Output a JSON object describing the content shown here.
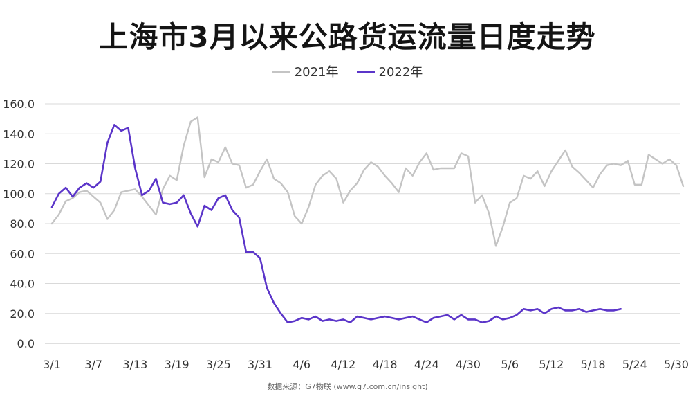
{
  "chart_data": {
    "type": "line",
    "title": "上海市3月以来公路货运流量日度走势",
    "ylim": [
      0,
      160
    ],
    "yticks": [
      "0.0",
      "20.0",
      "40.0",
      "60.0",
      "80.0",
      "100.0",
      "120.0",
      "140.0",
      "160.0"
    ],
    "xticks": [
      "3/1",
      "3/7",
      "3/13",
      "3/19",
      "3/25",
      "3/31",
      "4/6",
      "4/12",
      "4/18",
      "4/24",
      "4/30",
      "5/6",
      "5/12",
      "5/18",
      "5/24",
      "5/30"
    ],
    "x_start": "3/1",
    "grid": true,
    "legend_position": "top-center",
    "source": "数据来源：G7物联 (www.g7.com.cn/insight)",
    "series": [
      {
        "name": "2021年",
        "color": "#c4c4c4",
        "values": [
          80,
          86,
          95,
          97,
          101,
          102,
          98,
          94,
          83,
          89,
          101,
          102,
          103,
          98,
          92,
          86,
          103,
          112,
          109,
          132,
          148,
          151,
          111,
          123,
          121,
          131,
          120,
          119,
          104,
          106,
          115,
          123,
          110,
          107,
          101,
          85,
          80,
          91,
          106,
          112,
          115,
          110,
          94,
          102,
          107,
          116,
          121,
          118,
          112,
          107,
          101,
          117,
          112,
          121,
          127,
          116,
          117,
          117,
          117,
          127,
          125,
          94,
          99,
          87,
          65,
          78,
          94,
          97,
          112,
          110,
          115,
          105,
          115,
          122,
          129,
          118,
          114,
          109,
          104,
          113,
          119,
          120,
          119,
          122,
          106,
          106,
          126,
          123,
          120,
          123,
          119,
          105
        ]
      },
      {
        "name": "2022年",
        "color": "#5b35c9",
        "values": [
          91,
          100,
          104,
          98,
          104,
          107,
          104,
          108,
          134,
          146,
          142,
          144,
          117,
          99,
          102,
          110,
          94,
          93,
          94,
          99,
          87,
          78,
          92,
          89,
          97,
          99,
          89,
          84,
          61,
          61,
          57,
          37,
          27,
          20,
          14,
          15,
          17,
          16,
          18,
          15,
          16,
          15,
          16,
          14,
          18,
          17,
          16,
          17,
          18,
          17,
          16,
          17,
          18,
          16,
          14,
          17,
          18,
          19,
          16,
          19,
          16,
          16,
          14,
          15,
          18,
          16,
          17,
          19,
          23,
          22,
          23,
          20,
          23,
          24,
          22,
          22,
          23,
          21,
          22,
          23,
          22,
          22,
          23
        ]
      }
    ]
  }
}
